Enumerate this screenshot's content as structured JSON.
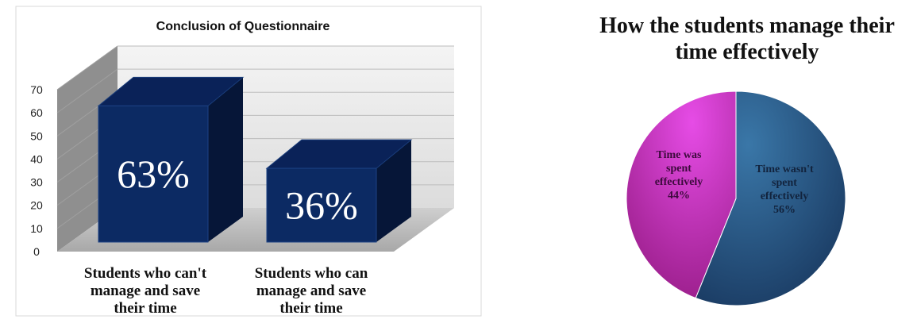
{
  "chart_data": [
    {
      "type": "bar",
      "title": "Conclusion of Questionnaire",
      "categories": [
        "Students who can't manage and save their time",
        "Students who can manage and save their time"
      ],
      "category_lines": [
        [
          "Students who can't",
          "manage and save",
          "their time"
        ],
        [
          "Students who can",
          "manage and save",
          "their time"
        ]
      ],
      "values": [
        63,
        36
      ],
      "data_labels": [
        "63%",
        "36%"
      ],
      "ylim": [
        0,
        70
      ],
      "yticks": [
        0,
        10,
        20,
        30,
        40,
        50,
        60,
        70
      ],
      "grid": true,
      "style": "3d",
      "colors": {
        "bar_front": "#0c2a63",
        "bar_top": "#0a2258",
        "bar_side": "#061638",
        "wall": "#e8e8e8",
        "floor": "#b5b5b5",
        "side_wall": "#8e8e8e"
      }
    },
    {
      "type": "pie",
      "title_lines": [
        "How the students manage their",
        "time effectively"
      ],
      "slices": [
        {
          "label_lines": [
            "Time wasn't",
            "spent",
            "effectively",
            "56%"
          ],
          "value": 56,
          "color": "#28527f"
        },
        {
          "label_lines": [
            "Time was",
            "spent",
            "effectively",
            "44%"
          ],
          "value": 44,
          "color": "#cc33cc"
        }
      ]
    }
  ]
}
